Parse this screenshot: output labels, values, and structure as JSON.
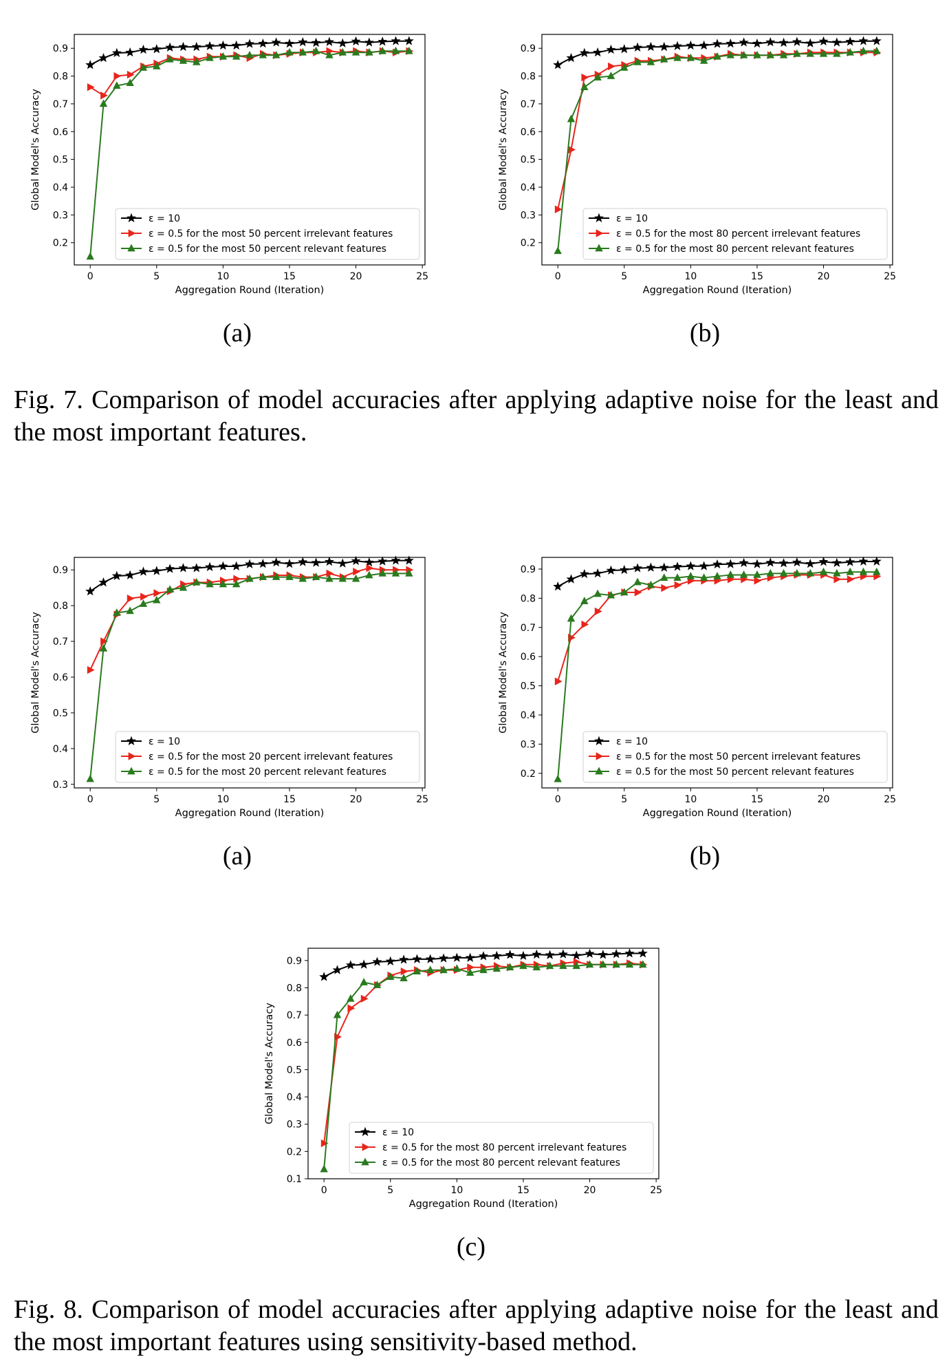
{
  "panels": [
    {
      "id": "fig7a",
      "sub_label": "(a)",
      "chart_data": {
        "type": "line",
        "xlabel": "Aggregation Round (Iteration)",
        "ylabel": "Global Model's Accuracy",
        "xlim": [
          -1.2,
          25.2
        ],
        "ylim": [
          0.12,
          0.95
        ],
        "xticks": [
          0,
          5,
          10,
          15,
          20,
          25
        ],
        "yticks": [
          0.2,
          0.3,
          0.4,
          0.5,
          0.6,
          0.7,
          0.8,
          0.9
        ],
        "grid": false,
        "legend_position": "lower-right",
        "x": [
          0,
          1,
          2,
          3,
          4,
          5,
          6,
          7,
          8,
          9,
          10,
          11,
          12,
          13,
          14,
          15,
          16,
          17,
          18,
          19,
          20,
          21,
          22,
          23,
          24
        ],
        "series": [
          {
            "name": "ε = 10",
            "color": "#000000",
            "marker": "star",
            "values": [
              0.84,
              0.865,
              0.883,
              0.885,
              0.895,
              0.897,
              0.903,
              0.905,
              0.905,
              0.908,
              0.91,
              0.91,
              0.916,
              0.917,
              0.921,
              0.917,
              0.922,
              0.92,
              0.923,
              0.918,
              0.925,
              0.921,
              0.924,
              0.926,
              0.926
            ]
          },
          {
            "name": "ε = 0.5 for the most 50 percent irrelevant features",
            "color": "#e8251b",
            "marker": "triangle-right",
            "values": [
              0.76,
              0.73,
              0.8,
              0.805,
              0.835,
              0.845,
              0.865,
              0.86,
              0.86,
              0.87,
              0.87,
              0.875,
              0.865,
              0.88,
              0.875,
              0.88,
              0.885,
              0.885,
              0.89,
              0.885,
              0.89,
              0.885,
              0.89,
              0.885,
              0.89
            ]
          },
          {
            "name": "ε = 0.5 for the most 50 percent relevant features",
            "color": "#2a7a1e",
            "marker": "triangle-up",
            "values": [
              0.15,
              0.7,
              0.765,
              0.775,
              0.83,
              0.835,
              0.86,
              0.855,
              0.85,
              0.865,
              0.87,
              0.87,
              0.875,
              0.875,
              0.875,
              0.885,
              0.885,
              0.89,
              0.875,
              0.885,
              0.885,
              0.885,
              0.89,
              0.89,
              0.89
            ]
          }
        ]
      }
    },
    {
      "id": "fig7b",
      "sub_label": "(b)",
      "chart_data": {
        "type": "line",
        "xlabel": "Aggregation Round (Iteration)",
        "ylabel": "Global Model's Accuracy",
        "xlim": [
          -1.2,
          25.2
        ],
        "ylim": [
          0.12,
          0.95
        ],
        "xticks": [
          0,
          5,
          10,
          15,
          20,
          25
        ],
        "yticks": [
          0.2,
          0.3,
          0.4,
          0.5,
          0.6,
          0.7,
          0.8,
          0.9
        ],
        "grid": false,
        "legend_position": "lower-right",
        "x": [
          0,
          1,
          2,
          3,
          4,
          5,
          6,
          7,
          8,
          9,
          10,
          11,
          12,
          13,
          14,
          15,
          16,
          17,
          18,
          19,
          20,
          21,
          22,
          23,
          24
        ],
        "series": [
          {
            "name": "ε = 10",
            "color": "#000000",
            "marker": "star",
            "values": [
              0.84,
              0.865,
              0.883,
              0.885,
              0.895,
              0.897,
              0.903,
              0.905,
              0.905,
              0.908,
              0.91,
              0.91,
              0.916,
              0.917,
              0.921,
              0.917,
              0.922,
              0.92,
              0.923,
              0.918,
              0.925,
              0.921,
              0.924,
              0.926,
              0.926
            ]
          },
          {
            "name": "ε = 0.5 for the most 80 percent irrelevant features",
            "color": "#e8251b",
            "marker": "triangle-right",
            "values": [
              0.32,
              0.535,
              0.795,
              0.805,
              0.835,
              0.84,
              0.855,
              0.855,
              0.86,
              0.87,
              0.865,
              0.865,
              0.87,
              0.88,
              0.875,
              0.875,
              0.875,
              0.88,
              0.88,
              0.885,
              0.885,
              0.885,
              0.885,
              0.885,
              0.885
            ]
          },
          {
            "name": "ε = 0.5 for the most 80 percent relevant features",
            "color": "#2a7a1e",
            "marker": "triangle-up",
            "values": [
              0.17,
              0.645,
              0.76,
              0.795,
              0.8,
              0.83,
              0.85,
              0.85,
              0.86,
              0.865,
              0.865,
              0.855,
              0.87,
              0.875,
              0.875,
              0.875,
              0.875,
              0.875,
              0.88,
              0.88,
              0.88,
              0.88,
              0.885,
              0.89,
              0.89
            ]
          }
        ]
      }
    },
    {
      "id": "fig8a",
      "sub_label": "(a)",
      "chart_data": {
        "type": "line",
        "xlabel": "Aggregation Round (Iteration)",
        "ylabel": "Global Model's Accuracy",
        "xlim": [
          -1.2,
          25.2
        ],
        "ylim": [
          0.29,
          0.935
        ],
        "xticks": [
          0,
          5,
          10,
          15,
          20,
          25
        ],
        "yticks": [
          0.3,
          0.4,
          0.5,
          0.6,
          0.7,
          0.8,
          0.9
        ],
        "grid": false,
        "legend_position": "lower-right",
        "x": [
          0,
          1,
          2,
          3,
          4,
          5,
          6,
          7,
          8,
          9,
          10,
          11,
          12,
          13,
          14,
          15,
          16,
          17,
          18,
          19,
          20,
          21,
          22,
          23,
          24
        ],
        "series": [
          {
            "name": "ε = 10",
            "color": "#000000",
            "marker": "star",
            "values": [
              0.84,
              0.865,
              0.883,
              0.885,
              0.895,
              0.897,
              0.903,
              0.905,
              0.905,
              0.908,
              0.91,
              0.91,
              0.916,
              0.917,
              0.921,
              0.917,
              0.922,
              0.92,
              0.923,
              0.918,
              0.925,
              0.921,
              0.924,
              0.926,
              0.926
            ]
          },
          {
            "name": "ε = 0.5 for the most 20 percent irrelevant features",
            "color": "#e8251b",
            "marker": "triangle-right",
            "values": [
              0.62,
              0.7,
              0.775,
              0.82,
              0.825,
              0.835,
              0.84,
              0.86,
              0.865,
              0.865,
              0.87,
              0.875,
              0.875,
              0.88,
              0.885,
              0.885,
              0.88,
              0.88,
              0.89,
              0.88,
              0.895,
              0.905,
              0.9,
              0.9,
              0.9
            ]
          },
          {
            "name": "ε = 0.5 for the most 20 percent relevant features",
            "color": "#2a7a1e",
            "marker": "triangle-up",
            "values": [
              0.315,
              0.68,
              0.78,
              0.785,
              0.805,
              0.815,
              0.845,
              0.85,
              0.865,
              0.86,
              0.86,
              0.86,
              0.875,
              0.88,
              0.88,
              0.88,
              0.875,
              0.88,
              0.875,
              0.875,
              0.875,
              0.885,
              0.89,
              0.89,
              0.89
            ]
          }
        ]
      }
    },
    {
      "id": "fig8b",
      "sub_label": "(b)",
      "chart_data": {
        "type": "line",
        "xlabel": "Aggregation Round (Iteration)",
        "ylabel": "Global Model's Accuracy",
        "xlim": [
          -1.2,
          25.2
        ],
        "ylim": [
          0.15,
          0.94
        ],
        "xticks": [
          0,
          5,
          10,
          15,
          20,
          25
        ],
        "yticks": [
          0.2,
          0.3,
          0.4,
          0.5,
          0.6,
          0.7,
          0.8,
          0.9
        ],
        "grid": false,
        "legend_position": "lower-right",
        "x": [
          0,
          1,
          2,
          3,
          4,
          5,
          6,
          7,
          8,
          9,
          10,
          11,
          12,
          13,
          14,
          15,
          16,
          17,
          18,
          19,
          20,
          21,
          22,
          23,
          24
        ],
        "series": [
          {
            "name": "ε = 10",
            "color": "#000000",
            "marker": "star",
            "values": [
              0.84,
              0.865,
              0.883,
              0.885,
              0.895,
              0.897,
              0.903,
              0.905,
              0.905,
              0.908,
              0.91,
              0.91,
              0.916,
              0.917,
              0.921,
              0.917,
              0.922,
              0.92,
              0.923,
              0.918,
              0.925,
              0.921,
              0.924,
              0.926,
              0.926
            ]
          },
          {
            "name": "ε = 0.5 for the most 50 percent irrelevant features",
            "color": "#e8251b",
            "marker": "triangle-right",
            "values": [
              0.515,
              0.665,
              0.71,
              0.755,
              0.81,
              0.82,
              0.82,
              0.84,
              0.835,
              0.845,
              0.86,
              0.86,
              0.86,
              0.865,
              0.865,
              0.86,
              0.87,
              0.875,
              0.88,
              0.88,
              0.88,
              0.865,
              0.865,
              0.875,
              0.875
            ]
          },
          {
            "name": "ε = 0.5 for the most 50 percent relevant features",
            "color": "#2a7a1e",
            "marker": "triangle-up",
            "values": [
              0.18,
              0.73,
              0.79,
              0.815,
              0.81,
              0.82,
              0.855,
              0.845,
              0.87,
              0.87,
              0.875,
              0.87,
              0.875,
              0.88,
              0.88,
              0.88,
              0.885,
              0.885,
              0.885,
              0.885,
              0.89,
              0.885,
              0.89,
              0.89,
              0.89
            ]
          }
        ]
      }
    },
    {
      "id": "fig8c",
      "sub_label": "(c)",
      "chart_data": {
        "type": "line",
        "xlabel": "Aggregation Round (Iteration)",
        "ylabel": "Global Model's Accuracy",
        "xlim": [
          -1.2,
          25.2
        ],
        "ylim": [
          0.1,
          0.945
        ],
        "xticks": [
          0,
          5,
          10,
          15,
          20,
          25
        ],
        "yticks": [
          0.1,
          0.2,
          0.3,
          0.4,
          0.5,
          0.6,
          0.7,
          0.8,
          0.9
        ],
        "grid": false,
        "legend_position": "lower-right",
        "x": [
          0,
          1,
          2,
          3,
          4,
          5,
          6,
          7,
          8,
          9,
          10,
          11,
          12,
          13,
          14,
          15,
          16,
          17,
          18,
          19,
          20,
          21,
          22,
          23,
          24
        ],
        "series": [
          {
            "name": "ε = 10",
            "color": "#000000",
            "marker": "star",
            "values": [
              0.84,
              0.865,
              0.883,
              0.885,
              0.895,
              0.897,
              0.903,
              0.905,
              0.905,
              0.908,
              0.91,
              0.91,
              0.916,
              0.917,
              0.921,
              0.917,
              0.922,
              0.92,
              0.923,
              0.918,
              0.925,
              0.921,
              0.924,
              0.926,
              0.926
            ]
          },
          {
            "name": "ε = 0.5 for the most 80 percent irrelevant features",
            "color": "#e8251b",
            "marker": "triangle-right",
            "values": [
              0.23,
              0.62,
              0.725,
              0.76,
              0.81,
              0.845,
              0.86,
              0.865,
              0.855,
              0.865,
              0.865,
              0.875,
              0.875,
              0.88,
              0.875,
              0.885,
              0.885,
              0.88,
              0.89,
              0.895,
              0.885,
              0.885,
              0.885,
              0.89,
              0.885
            ]
          },
          {
            "name": "ε = 0.5 for the most 80 percent relevant features",
            "color": "#2a7a1e",
            "marker": "triangle-up",
            "values": [
              0.135,
              0.7,
              0.76,
              0.82,
              0.81,
              0.84,
              0.835,
              0.86,
              0.865,
              0.865,
              0.87,
              0.855,
              0.865,
              0.87,
              0.875,
              0.88,
              0.875,
              0.88,
              0.88,
              0.88,
              0.885,
              0.885,
              0.885,
              0.885,
              0.885
            ]
          }
        ]
      }
    }
  ],
  "captions": {
    "fig7": "Fig. 7.  Comparison of model accuracies after applying adaptive noise for the least and the most important features.",
    "fig8": "Fig. 8.  Comparison of model accuracies after applying adaptive noise for the least and the most important features using sensitivity-based method."
  }
}
